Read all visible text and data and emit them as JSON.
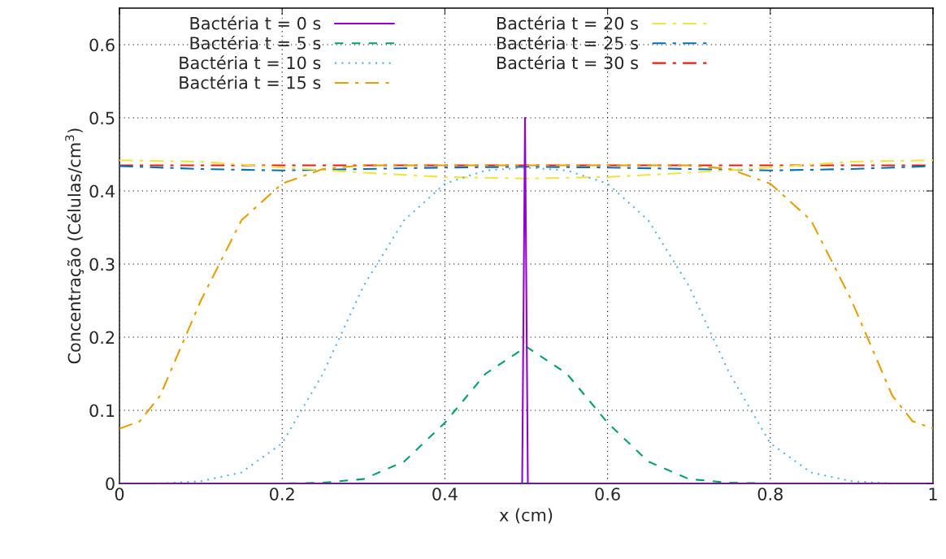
{
  "chart_data": {
    "type": "line",
    "xlabel": "x (cm)",
    "ylabel": "Concentração (Células/cm$^{3}$)",
    "xlim": [
      0,
      1
    ],
    "ylim": [
      0,
      0.65
    ],
    "xticks": [
      0,
      0.2,
      0.4,
      0.6,
      0.8,
      1
    ],
    "yticks": [
      0,
      0.1,
      0.2,
      0.3,
      0.4,
      0.5,
      0.6
    ],
    "grid": true,
    "legend": "top",
    "series": [
      {
        "name": "Bactéria t = 0 s",
        "color": "#9400d3",
        "line_style": "solid",
        "x": [
          0,
          0.495,
          0.4985,
          0.502,
          1
        ],
        "values": [
          0,
          0,
          0.5,
          0,
          0
        ]
      },
      {
        "name": "Bactéria t = 5 s",
        "color": "#009e73",
        "line_style": "dashed",
        "x": [
          0,
          0.2,
          0.25,
          0.3,
          0.35,
          0.4,
          0.45,
          0.5,
          0.55,
          0.6,
          0.65,
          0.7,
          0.75,
          0.8,
          1
        ],
        "values": [
          0,
          0,
          0.001,
          0.006,
          0.03,
          0.083,
          0.15,
          0.187,
          0.15,
          0.083,
          0.03,
          0.006,
          0.001,
          0,
          0
        ]
      },
      {
        "name": "Bactéria t = 10 s",
        "color": "#56b4e9",
        "line_style": "dotted",
        "x": [
          0,
          0.05,
          0.1,
          0.15,
          0.2,
          0.25,
          0.3,
          0.35,
          0.4,
          0.45,
          0.5,
          0.55,
          0.6,
          0.65,
          0.7,
          0.75,
          0.8,
          0.85,
          0.9,
          0.95,
          1
        ],
        "values": [
          0,
          0,
          0.003,
          0.015,
          0.055,
          0.15,
          0.27,
          0.36,
          0.41,
          0.428,
          0.432,
          0.428,
          0.41,
          0.36,
          0.27,
          0.15,
          0.055,
          0.015,
          0.003,
          0,
          0
        ]
      },
      {
        "name": "Bactéria t = 15 s",
        "color": "#e69f00",
        "line_style": "dashdot",
        "x": [
          0,
          0.025,
          0.05,
          0.1,
          0.15,
          0.2,
          0.25,
          0.3,
          0.4,
          0.5,
          0.6,
          0.7,
          0.75,
          0.8,
          0.85,
          0.9,
          0.95,
          0.975,
          1
        ],
        "values": [
          0.075,
          0.085,
          0.12,
          0.25,
          0.36,
          0.41,
          0.43,
          0.435,
          0.435,
          0.435,
          0.435,
          0.435,
          0.43,
          0.41,
          0.36,
          0.25,
          0.12,
          0.085,
          0.075
        ]
      },
      {
        "name": "Bactéria t = 20 s",
        "color": "#f0e442",
        "line_style": "dashdot",
        "x": [
          0,
          0.1,
          0.2,
          0.3,
          0.4,
          0.5,
          0.6,
          0.7,
          0.8,
          0.9,
          1
        ],
        "values": [
          0.442,
          0.44,
          0.432,
          0.425,
          0.419,
          0.417,
          0.419,
          0.425,
          0.432,
          0.44,
          0.442
        ]
      },
      {
        "name": "Bactéria t = 25 s",
        "color": "#0072b2",
        "line_style": "dashdot",
        "x": [
          0,
          0.1,
          0.2,
          0.3,
          0.4,
          0.5,
          0.6,
          0.7,
          0.8,
          0.9,
          1
        ],
        "values": [
          0.434,
          0.43,
          0.428,
          0.43,
          0.432,
          0.433,
          0.432,
          0.43,
          0.428,
          0.43,
          0.434
        ]
      },
      {
        "name": "Bactéria t = 30 s",
        "color": "#e51e10",
        "line_style": "dashdot",
        "x": [
          0,
          0.25,
          0.5,
          0.75,
          1
        ],
        "values": [
          0.435,
          0.435,
          0.435,
          0.435,
          0.435
        ]
      }
    ]
  }
}
